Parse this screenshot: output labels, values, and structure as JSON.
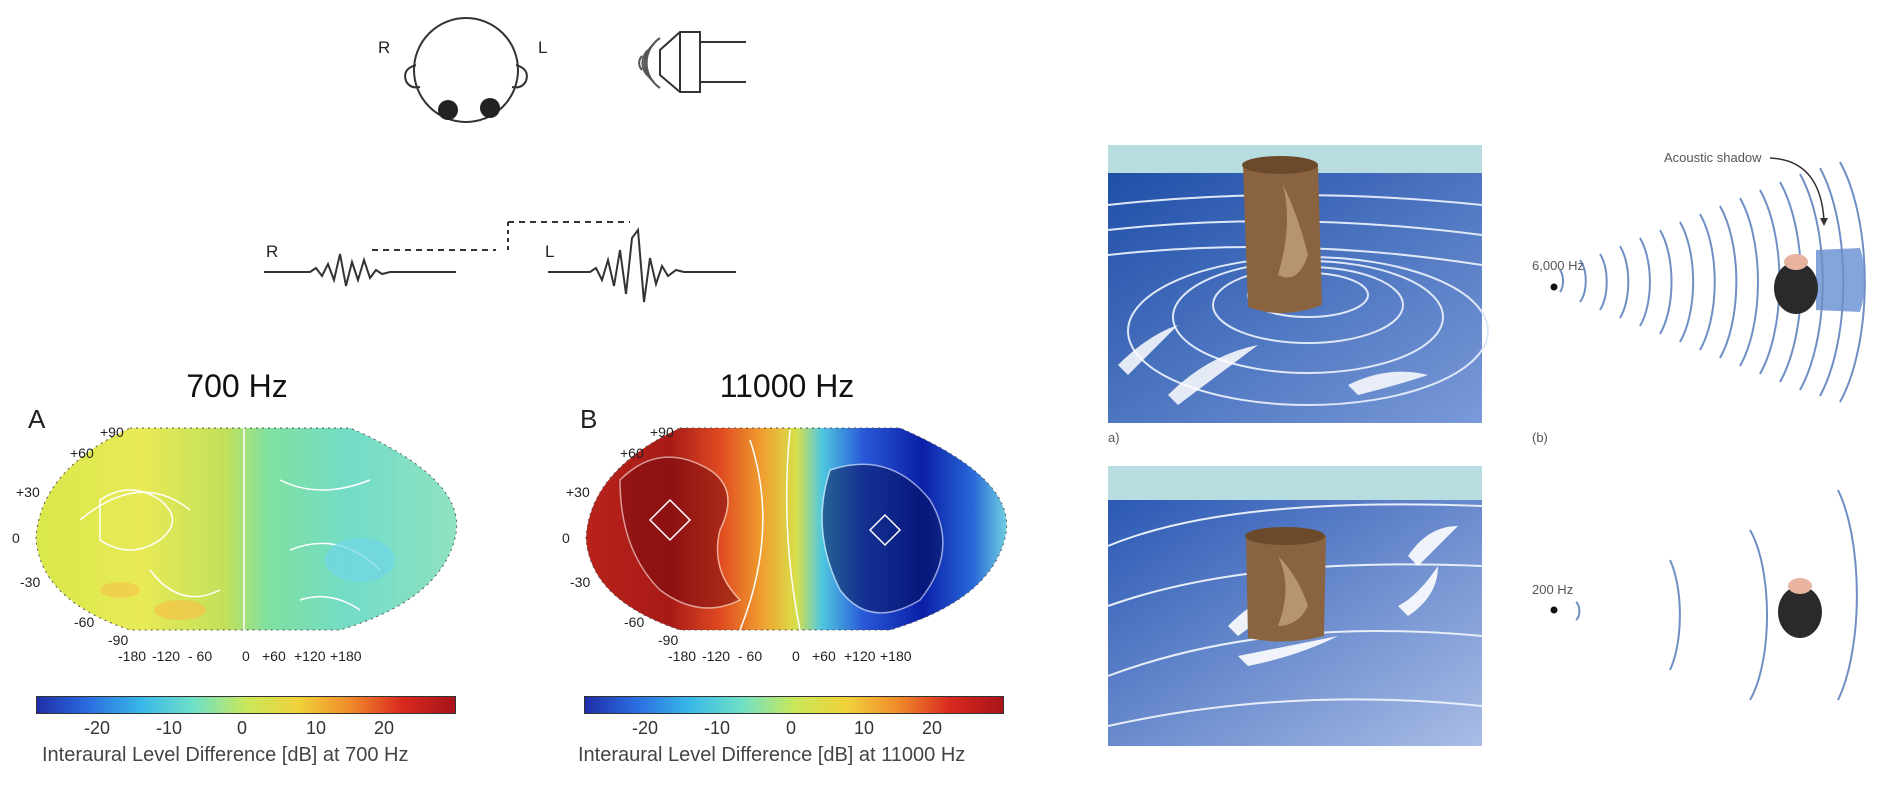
{
  "head_diagram": {
    "right_label": "R",
    "left_label": "L"
  },
  "waveform": {
    "right_label": "R",
    "left_label": "L"
  },
  "ild_maps": [
    {
      "panel": "A",
      "title": "700 Hz",
      "y_ticks": [
        "+90",
        "+60",
        "+30",
        "0",
        "-30",
        "-60",
        "-90"
      ],
      "x_ticks": [
        "-180",
        "-120",
        "- 60",
        "0",
        "+60",
        "+120",
        "+180"
      ],
      "colorbar_ticks": [
        "-20",
        "-10",
        "0",
        "10",
        "20"
      ],
      "caption": "Interaural Level Difference [dB] at 700 Hz"
    },
    {
      "panel": "B",
      "title": "11000 Hz",
      "y_ticks": [
        "+90",
        "+60",
        "+30",
        "0",
        "-30",
        "-60",
        "-90"
      ],
      "x_ticks": [
        "-180",
        "-120",
        "- 60",
        "0",
        "+60",
        "+120",
        "+180"
      ],
      "colorbar_ticks": [
        "-20",
        "-10",
        "0",
        "10",
        "20"
      ],
      "caption": "Interaural Level Difference [dB] at 11000 Hz"
    }
  ],
  "shadow_figure": {
    "acoustic_shadow_label": "Acoustic shadow",
    "high_freq_label": "6,000 Hz",
    "low_freq_label": "200 Hz",
    "panel_a_label": "a)",
    "panel_b_label": "(b)"
  },
  "colors": {
    "water_dark": "#1f4fa8",
    "water_light": "#6f95d6",
    "sky": "#b8dde0",
    "post": "#8a6440",
    "wave_line": "#6f8fc4",
    "shadow": "#6f95d6"
  }
}
